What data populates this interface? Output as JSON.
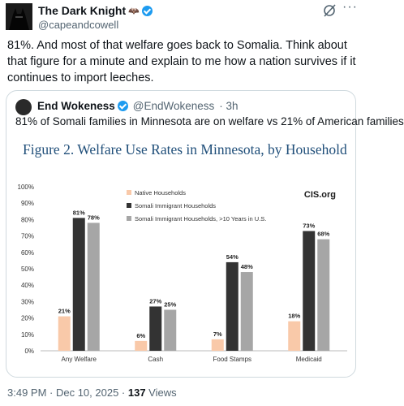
{
  "tweet": {
    "author_name": "The Dark Knight",
    "author_emoji": "🦇",
    "author_handle": "@capeandcowell",
    "text": "81%. And most of that welfare goes back to Somalia. Think about that figure for a minute and explain to me how a nation survives if it continues to import leeches.",
    "timestamp": "3:49 PM · Dec 10, 2025 · ",
    "views_count": "137",
    "views_label": " Views"
  },
  "quoted": {
    "author_name": "End Wokeness",
    "author_handle": "@EndWokeness",
    "time": "· 3h",
    "text": "81% of Somali families in Minnesota are on welfare vs 21% of American families",
    "figure_title": "Figure 2. Welfare Use Rates in Minnesota, by Household",
    "source_label": "CIS.org"
  },
  "colors": {
    "badge": "#1d9bf0",
    "native": "#f9c9a9",
    "somali": "#333333",
    "somali10": "#a6a6a6"
  },
  "chart_data": {
    "type": "bar",
    "title": "Figure 2. Welfare Use Rates in Minnesota, by Household",
    "categories": [
      "Any Welfare",
      "Cash",
      "Food Stamps",
      "Medicaid"
    ],
    "series": [
      {
        "name": "Native Households",
        "values": [
          21,
          6,
          7,
          18
        ],
        "labels": [
          "21%",
          "6%",
          "7%",
          "18%"
        ],
        "color": "#f9c9a9"
      },
      {
        "name": "Somali Immigrant Households",
        "values": [
          81,
          27,
          54,
          73
        ],
        "labels": [
          "81%",
          "27%",
          "54%",
          "73%"
        ],
        "color": "#333333"
      },
      {
        "name": "Somali Immigrant Households, >10 Years in U.S.",
        "values": [
          78,
          25,
          48,
          68
        ],
        "labels": [
          "78%",
          "25%",
          "48%",
          "68%"
        ],
        "color": "#a6a6a6"
      }
    ],
    "ylim": [
      0,
      100
    ],
    "yticks": [
      "0%",
      "10%",
      "20%",
      "30%",
      "40%",
      "50%",
      "60%",
      "70%",
      "80%",
      "90%",
      "100%"
    ],
    "ytick_values": [
      0,
      10,
      20,
      30,
      40,
      50,
      60,
      70,
      80,
      90,
      100
    ],
    "grid": false,
    "legend_position": "top-center"
  }
}
